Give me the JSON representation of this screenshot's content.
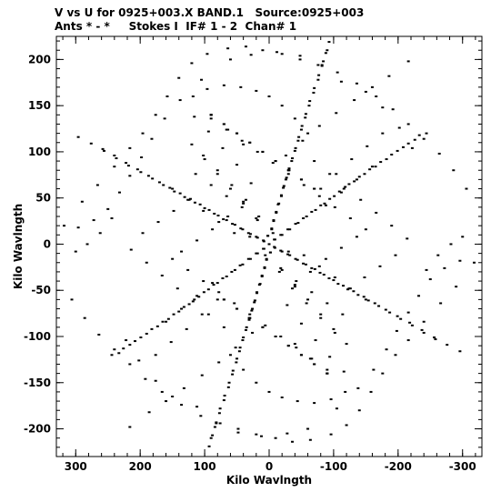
{
  "header": {
    "title": "V vs U for 0925+003.X BAND.1   Source:0925+003",
    "subtitle": "Ants * - *     Stokes I  IF# 1 - 2  Chan# 1"
  },
  "chart_data": {
    "type": "scatter",
    "title": "V vs U for 0925+003.X BAND.1   Source:0925+003",
    "subtitle": "Ants * - *     Stokes I  IF# 1 - 2  Chan# 1",
    "xlabel": "Kilo Wavlngth",
    "ylabel": "Kilo Wavlngth",
    "xlim": [
      330,
      -330
    ],
    "ylim": [
      -230,
      225
    ],
    "x_reversed": true,
    "x_ticks": [
      300,
      200,
      100,
      0,
      -100,
      -200,
      -300
    ],
    "y_ticks": [
      200,
      150,
      100,
      50,
      0,
      -50,
      -100,
      -150,
      -200
    ],
    "x_minor_step": 20,
    "y_minor_step": 10,
    "grid": false,
    "legend": "none",
    "marker_color": "#000000",
    "series": [
      {
        "points": [
          [
            0,
            0
          ],
          [
            2,
            9
          ],
          [
            -4,
            16
          ],
          [
            -7,
            25
          ],
          [
            -11,
            34
          ],
          [
            -14,
            43
          ],
          [
            -19,
            52
          ],
          [
            -22,
            61
          ],
          [
            -26,
            70
          ],
          [
            -31,
            80
          ],
          [
            -35,
            90
          ],
          [
            -40,
            101
          ],
          [
            -45,
            112
          ],
          [
            -50,
            124
          ],
          [
            -56,
            137
          ],
          [
            -62,
            150
          ],
          [
            -69,
            164
          ],
          [
            -76,
            178
          ],
          [
            -82,
            193
          ],
          [
            -88,
            207
          ],
          [
            -93,
            219
          ],
          [
            -2,
            -9
          ],
          [
            4,
            -17
          ],
          [
            7,
            -26
          ],
          [
            11,
            -35
          ],
          [
            15,
            -44
          ],
          [
            19,
            -53
          ],
          [
            23,
            -63
          ],
          [
            27,
            -72
          ],
          [
            31,
            -82
          ],
          [
            36,
            -93
          ],
          [
            41,
            -104
          ],
          [
            46,
            -116
          ],
          [
            51,
            -128
          ],
          [
            57,
            -141
          ],
          [
            63,
            -155
          ],
          [
            70,
            -169
          ],
          [
            77,
            -183
          ],
          [
            84,
            -198
          ],
          [
            90,
            -210
          ],
          [
            8,
            3
          ],
          [
            18,
            7
          ],
          [
            29,
            11
          ],
          [
            41,
            16
          ],
          [
            53,
            21
          ],
          [
            66,
            26
          ],
          [
            79,
            31
          ],
          [
            93,
            37
          ],
          [
            107,
            43
          ],
          [
            122,
            49
          ],
          [
            138,
            55
          ],
          [
            154,
            61
          ],
          [
            170,
            67
          ],
          [
            187,
            74
          ],
          [
            204,
            81
          ],
          [
            222,
            88
          ],
          [
            240,
            96
          ],
          [
            258,
            103
          ],
          [
            -9,
            -4
          ],
          [
            -20,
            -8
          ],
          [
            -32,
            -12
          ],
          [
            -44,
            -17
          ],
          [
            -57,
            -22
          ],
          [
            -71,
            -27
          ],
          [
            -85,
            -33
          ],
          [
            -100,
            -39
          ],
          [
            -115,
            -45
          ],
          [
            -131,
            -51
          ],
          [
            -147,
            -57
          ],
          [
            -164,
            -64
          ],
          [
            -181,
            -71
          ],
          [
            -199,
            -78
          ],
          [
            -218,
            -85
          ],
          [
            -237,
            -93
          ],
          [
            -256,
            -101
          ],
          [
            -276,
            -109
          ],
          [
            -296,
            -116
          ],
          [
            -8,
            5
          ],
          [
            -18,
            10
          ],
          [
            -29,
            16
          ],
          [
            -41,
            22
          ],
          [
            -53,
            28
          ],
          [
            -66,
            35
          ],
          [
            -80,
            42
          ],
          [
            -94,
            49
          ],
          [
            -109,
            57
          ],
          [
            -124,
            65
          ],
          [
            -140,
            73
          ],
          [
            -156,
            81
          ],
          [
            -173,
            89
          ],
          [
            -190,
            97
          ],
          [
            -208,
            105
          ],
          [
            -226,
            113
          ],
          [
            -244,
            120
          ],
          [
            9,
            -5
          ],
          [
            20,
            -10
          ],
          [
            32,
            -16
          ],
          [
            45,
            -23
          ],
          [
            58,
            -30
          ],
          [
            72,
            -37
          ],
          [
            86,
            -44
          ],
          [
            101,
            -52
          ],
          [
            116,
            -60
          ],
          [
            132,
            -68
          ],
          [
            148,
            -76
          ],
          [
            165,
            -84
          ],
          [
            182,
            -92
          ],
          [
            199,
            -101
          ],
          [
            216,
            -109
          ],
          [
            233,
            -118
          ],
          [
            60,
            200
          ],
          [
            28,
            205
          ],
          [
            -12,
            208
          ],
          [
            -48,
            204
          ],
          [
            -82,
            194
          ],
          [
            -112,
            176
          ],
          [
            -150,
            165
          ],
          [
            -176,
            148
          ],
          [
            -202,
            126
          ],
          [
            -222,
            104
          ],
          [
            105,
            178
          ],
          [
            138,
            156
          ],
          [
            162,
            136
          ],
          [
            182,
            114
          ],
          [
            198,
            94
          ],
          [
            216,
            74
          ],
          [
            232,
            56
          ],
          [
            250,
            38
          ],
          [
            272,
            26
          ],
          [
            296,
            18
          ],
          [
            -244,
            -28
          ],
          [
            -262,
            -12
          ],
          [
            -282,
            0
          ],
          [
            -300,
            8
          ],
          [
            -318,
            -20
          ],
          [
            -290,
            -46
          ],
          [
            -266,
            -64
          ],
          [
            -240,
            -84
          ],
          [
            -216,
            -104
          ],
          [
            -196,
            -120
          ],
          [
            -176,
            -140
          ],
          [
            -158,
            -160
          ],
          [
            -140,
            -180
          ],
          [
            -120,
            -196
          ],
          [
            -96,
            -206
          ],
          [
            -64,
            -212
          ],
          [
            -36,
            -214
          ],
          [
            -10,
            -210
          ],
          [
            20,
            -206
          ],
          [
            48,
            -200
          ],
          [
            76,
            -194
          ],
          [
            106,
            -186
          ],
          [
            136,
            -174
          ],
          [
            166,
            -160
          ],
          [
            192,
            -146
          ],
          [
            216,
            -130
          ],
          [
            240,
            -114
          ],
          [
            264,
            -98
          ],
          [
            286,
            -80
          ],
          [
            306,
            -60
          ],
          [
            216,
            -198
          ],
          [
            186,
            -182
          ],
          [
            160,
            -170
          ],
          [
            132,
            -156
          ],
          [
            104,
            -142
          ],
          [
            78,
            -128
          ],
          [
            52,
            -112
          ],
          [
            26,
            -96
          ],
          [
            -116,
            -138
          ],
          [
            -94,
            -122
          ],
          [
            -72,
            -104
          ],
          [
            -50,
            -86
          ],
          [
            -28,
            -66
          ],
          [
            -40,
            -46
          ],
          [
            -64,
            -30
          ],
          [
            -88,
            -16
          ],
          [
            -112,
            -4
          ],
          [
            -136,
            8
          ],
          [
            70,
            -90
          ],
          [
            94,
            -76
          ],
          [
            118,
            -62
          ],
          [
            142,
            -48
          ],
          [
            166,
            -34
          ],
          [
            190,
            -20
          ],
          [
            214,
            -6
          ],
          [
            196,
            12
          ],
          [
            172,
            24
          ],
          [
            148,
            36
          ],
          [
            124,
            48
          ],
          [
            -60,
            120
          ],
          [
            -40,
            136
          ],
          [
            -20,
            150
          ],
          [
            0,
            160
          ],
          [
            20,
            166
          ],
          [
            44,
            170
          ],
          [
            70,
            172
          ],
          [
            96,
            168
          ],
          [
            118,
            160
          ],
          [
            90,
            140
          ],
          [
            64,
            124
          ],
          [
            40,
            108
          ],
          [
            -80,
            60
          ],
          [
            -104,
            76
          ],
          [
            -128,
            92
          ],
          [
            -152,
            106
          ],
          [
            -176,
            120
          ],
          [
            -160,
            84
          ],
          [
            -136,
            70
          ],
          [
            -112,
            56
          ],
          [
            -88,
            42
          ],
          [
            120,
            108
          ],
          [
            100,
            92
          ],
          [
            80,
            76
          ],
          [
            60,
            60
          ],
          [
            40,
            44
          ],
          [
            20,
            28
          ],
          [
            -16,
            -30
          ],
          [
            -36,
            -48
          ],
          [
            -58,
            -64
          ],
          [
            -80,
            -80
          ],
          [
            -102,
            -96
          ],
          [
            150,
            -16
          ],
          [
            126,
            -28
          ],
          [
            102,
            -40
          ],
          [
            78,
            -52
          ],
          [
            54,
            -64
          ],
          [
            30,
            -76
          ],
          [
            6,
            -88
          ],
          [
            -18,
            -100
          ],
          [
            -42,
            -112
          ],
          [
            -66,
            -124
          ],
          [
            -90,
            -136
          ],
          [
            -150,
            -60
          ],
          [
            -126,
            -48
          ],
          [
            -102,
            -36
          ],
          [
            -78,
            -24
          ],
          [
            -54,
            -12
          ],
          [
            -30,
            -8
          ],
          [
            -6,
            12
          ],
          [
            18,
            26
          ],
          [
            42,
            40
          ],
          [
            66,
            52
          ],
          [
            90,
            64
          ],
          [
            114,
            76
          ],
          [
            10,
            100
          ],
          [
            -10,
            90
          ],
          [
            -30,
            80
          ],
          [
            -50,
            70
          ],
          [
            -70,
            60
          ],
          [
            30,
            110
          ],
          [
            50,
            120
          ],
          [
            70,
            130
          ],
          [
            90,
            140
          ],
          [
            -10,
            -100
          ],
          [
            10,
            -90
          ],
          [
            30,
            -80
          ],
          [
            50,
            -70
          ],
          [
            70,
            -60
          ],
          [
            -30,
            -110
          ],
          [
            -50,
            -120
          ],
          [
            -70,
            -130
          ],
          [
            -90,
            -140
          ]
        ]
      }
    ]
  }
}
